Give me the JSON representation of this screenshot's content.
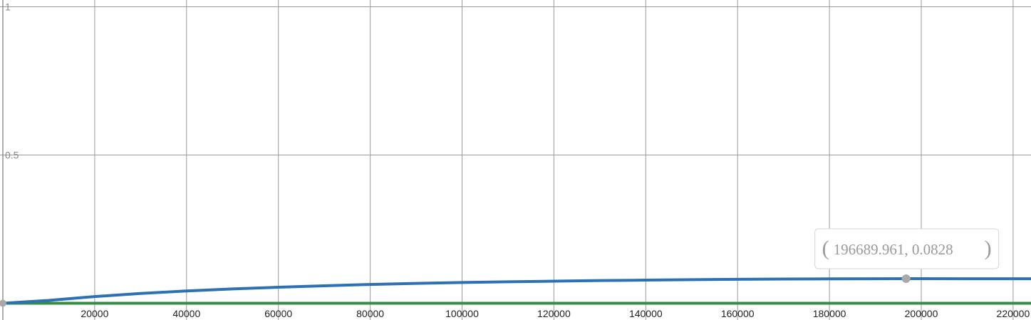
{
  "chart_data": {
    "type": "line",
    "title": "",
    "xlabel": "",
    "ylabel": "",
    "xlim": [
      0,
      224000
    ],
    "ylim": [
      0,
      1.04
    ],
    "grid": true,
    "x_ticks": [
      20000,
      40000,
      60000,
      80000,
      100000,
      120000,
      140000,
      160000,
      180000,
      200000,
      220000
    ],
    "x_tick_labels": [
      "20000",
      "40000",
      "60000",
      "80000",
      "100000",
      "120000",
      "140000",
      "160000",
      "180000",
      "200000",
      "220000"
    ],
    "y_ticks": [
      0.5,
      1
    ],
    "y_tick_labels": [
      "0.5",
      "1"
    ],
    "series": [
      {
        "color": "#2d70b3",
        "x": [
          0,
          10000,
          20000,
          30000,
          40000,
          50000,
          60000,
          70000,
          80000,
          90000,
          100000,
          110000,
          120000,
          130000,
          140000,
          150000,
          160000,
          170000,
          180000,
          190000,
          196690,
          200000,
          210000,
          220000,
          224000
        ],
        "y": [
          0.0,
          0.0095,
          0.0225,
          0.033,
          0.0415,
          0.0485,
          0.054,
          0.059,
          0.0635,
          0.067,
          0.07,
          0.0725,
          0.0745,
          0.0765,
          0.078,
          0.0795,
          0.0808,
          0.0818,
          0.0823,
          0.0826,
          0.0828,
          0.0828,
          0.0827,
          0.0826,
          0.0826
        ]
      },
      {
        "color": "#388c46",
        "x": [
          0,
          224000
        ],
        "y": [
          0.0,
          0.0
        ]
      }
    ],
    "highlighted_point": {
      "x": 196689.961,
      "y": 0.0828,
      "label": "196689.961, 0.0828",
      "color": "#a9a9a9"
    },
    "origin_marker_color": "#a9a9a9"
  }
}
